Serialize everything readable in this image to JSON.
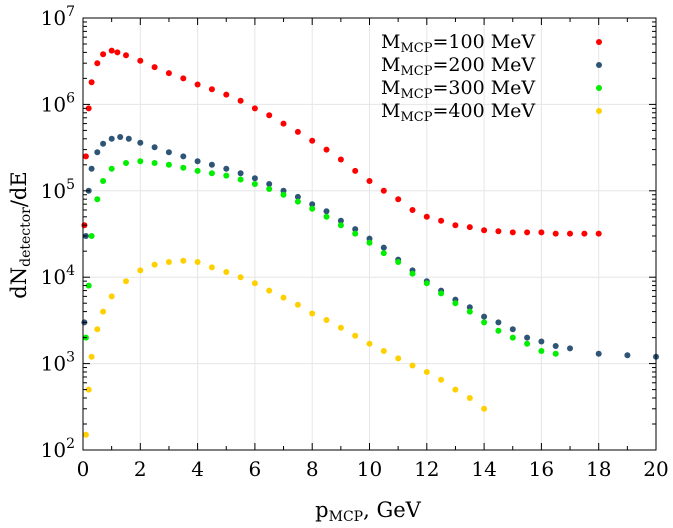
{
  "chart_data": {
    "type": "scatter",
    "title": "",
    "xlabel": "p",
    "xlabel_sub": "MCP",
    "xlabel_suffix": ", GeV",
    "ylabel": "dN",
    "ylabel_sub": "detector",
    "ylabel_suffix": "/dE",
    "xlim": [
      0,
      20
    ],
    "ylim": [
      100,
      10000000
    ],
    "yscale": "log",
    "grid": true,
    "legend_position": "top-right",
    "x_ticks": [
      "0",
      "2",
      "4",
      "6",
      "8",
      "10",
      "12",
      "14",
      "16",
      "18",
      "20"
    ],
    "y_ticks": [
      {
        "base": "10",
        "exp": "2"
      },
      {
        "base": "10",
        "exp": "3"
      },
      {
        "base": "10",
        "exp": "4"
      },
      {
        "base": "10",
        "exp": "5"
      },
      {
        "base": "10",
        "exp": "6"
      },
      {
        "base": "10",
        "exp": "7"
      }
    ],
    "series": [
      {
        "name": "M",
        "name_sub": "MCP",
        "name_suffix": "=100 MeV",
        "color": "#ff0000",
        "x": [
          0.05,
          0.1,
          0.2,
          0.3,
          0.5,
          0.7,
          1.0,
          1.2,
          1.5,
          2.0,
          2.5,
          3.0,
          3.5,
          4.0,
          4.5,
          5.0,
          5.5,
          6.0,
          6.5,
          7.0,
          7.5,
          8.0,
          8.5,
          9.0,
          9.5,
          10.0,
          10.5,
          11.0,
          11.5,
          12.0,
          12.5,
          13.0,
          13.5,
          14.0,
          14.5,
          15.0,
          15.5,
          16.0,
          16.5,
          17.0,
          17.5,
          18.0
        ],
        "y": [
          40000,
          250000,
          900000,
          1800000,
          3000000,
          3800000,
          4200000,
          4000000,
          3700000,
          3200000,
          2700000,
          2300000,
          2000000,
          1700000,
          1500000,
          1300000,
          1100000,
          900000,
          750000,
          600000,
          480000,
          380000,
          300000,
          230000,
          170000,
          130000,
          100000,
          80000,
          60000,
          50000,
          45000,
          40000,
          38000,
          35000,
          34000,
          33000,
          33000,
          33000,
          32000,
          32000,
          32000,
          32000
        ]
      },
      {
        "name": "M",
        "name_sub": "MCP",
        "name_suffix": "=200 MeV",
        "color": "#2e5575",
        "x": [
          0.05,
          0.1,
          0.2,
          0.3,
          0.5,
          0.7,
          1.0,
          1.3,
          1.6,
          2.0,
          2.5,
          3.0,
          3.5,
          4.0,
          4.5,
          5.0,
          5.5,
          6.0,
          6.5,
          7.0,
          7.5,
          8.0,
          8.5,
          9.0,
          9.5,
          10.0,
          10.5,
          11.0,
          11.5,
          12.0,
          12.5,
          13.0,
          13.5,
          14.0,
          14.5,
          15.0,
          15.5,
          16.0,
          16.5,
          17.0,
          18.0,
          19.0,
          20.0
        ],
        "y": [
          3000,
          30000,
          100000,
          180000,
          280000,
          350000,
          400000,
          420000,
          400000,
          360000,
          320000,
          280000,
          250000,
          220000,
          200000,
          180000,
          160000,
          140000,
          120000,
          100000,
          85000,
          70000,
          58000,
          45000,
          36000,
          28000,
          22000,
          16000,
          12000,
          9000,
          7000,
          5500,
          4500,
          3500,
          3000,
          2500,
          2000,
          1800,
          1600,
          1500,
          1300,
          1250,
          1200
        ]
      },
      {
        "name": "M",
        "name_sub": "MCP",
        "name_suffix": "=300 MeV",
        "color": "#00ee00",
        "x": [
          0.1,
          0.2,
          0.3,
          0.5,
          0.7,
          1.0,
          1.5,
          2.0,
          2.5,
          3.0,
          3.5,
          4.0,
          4.5,
          5.0,
          5.5,
          6.0,
          6.5,
          7.0,
          7.5,
          8.0,
          8.5,
          9.0,
          9.5,
          10.0,
          10.5,
          11.0,
          11.5,
          12.0,
          12.5,
          13.0,
          13.5,
          14.0,
          14.5,
          15.0,
          15.5,
          16.0,
          16.5
        ],
        "y": [
          2000,
          8000,
          30000,
          80000,
          130000,
          180000,
          210000,
          220000,
          210000,
          200000,
          185000,
          170000,
          160000,
          150000,
          135000,
          120000,
          105000,
          90000,
          75000,
          62000,
          50000,
          40000,
          32000,
          25000,
          19000,
          15000,
          11000,
          8500,
          6500,
          5000,
          4000,
          3000,
          2400,
          2000,
          1700,
          1400,
          1300
        ]
      },
      {
        "name": "M",
        "name_sub": "MCP",
        "name_suffix": "=400 MeV",
        "color": "#ffd000",
        "x": [
          0.1,
          0.2,
          0.3,
          0.5,
          0.7,
          1.0,
          1.5,
          2.0,
          2.5,
          3.0,
          3.5,
          4.0,
          4.5,
          5.0,
          5.5,
          6.0,
          6.5,
          7.0,
          7.5,
          8.0,
          8.5,
          9.0,
          9.5,
          10.0,
          10.5,
          11.0,
          11.5,
          12.0,
          12.5,
          13.0,
          13.5,
          14.0
        ],
        "y": [
          150,
          500,
          1200,
          2500,
          4000,
          6000,
          9000,
          12000,
          14000,
          15000,
          15500,
          15000,
          13000,
          11500,
          10000,
          8500,
          7000,
          5800,
          4800,
          3800,
          3200,
          2600,
          2100,
          1700,
          1400,
          1150,
          950,
          800,
          650,
          500,
          400,
          300
        ]
      }
    ]
  }
}
